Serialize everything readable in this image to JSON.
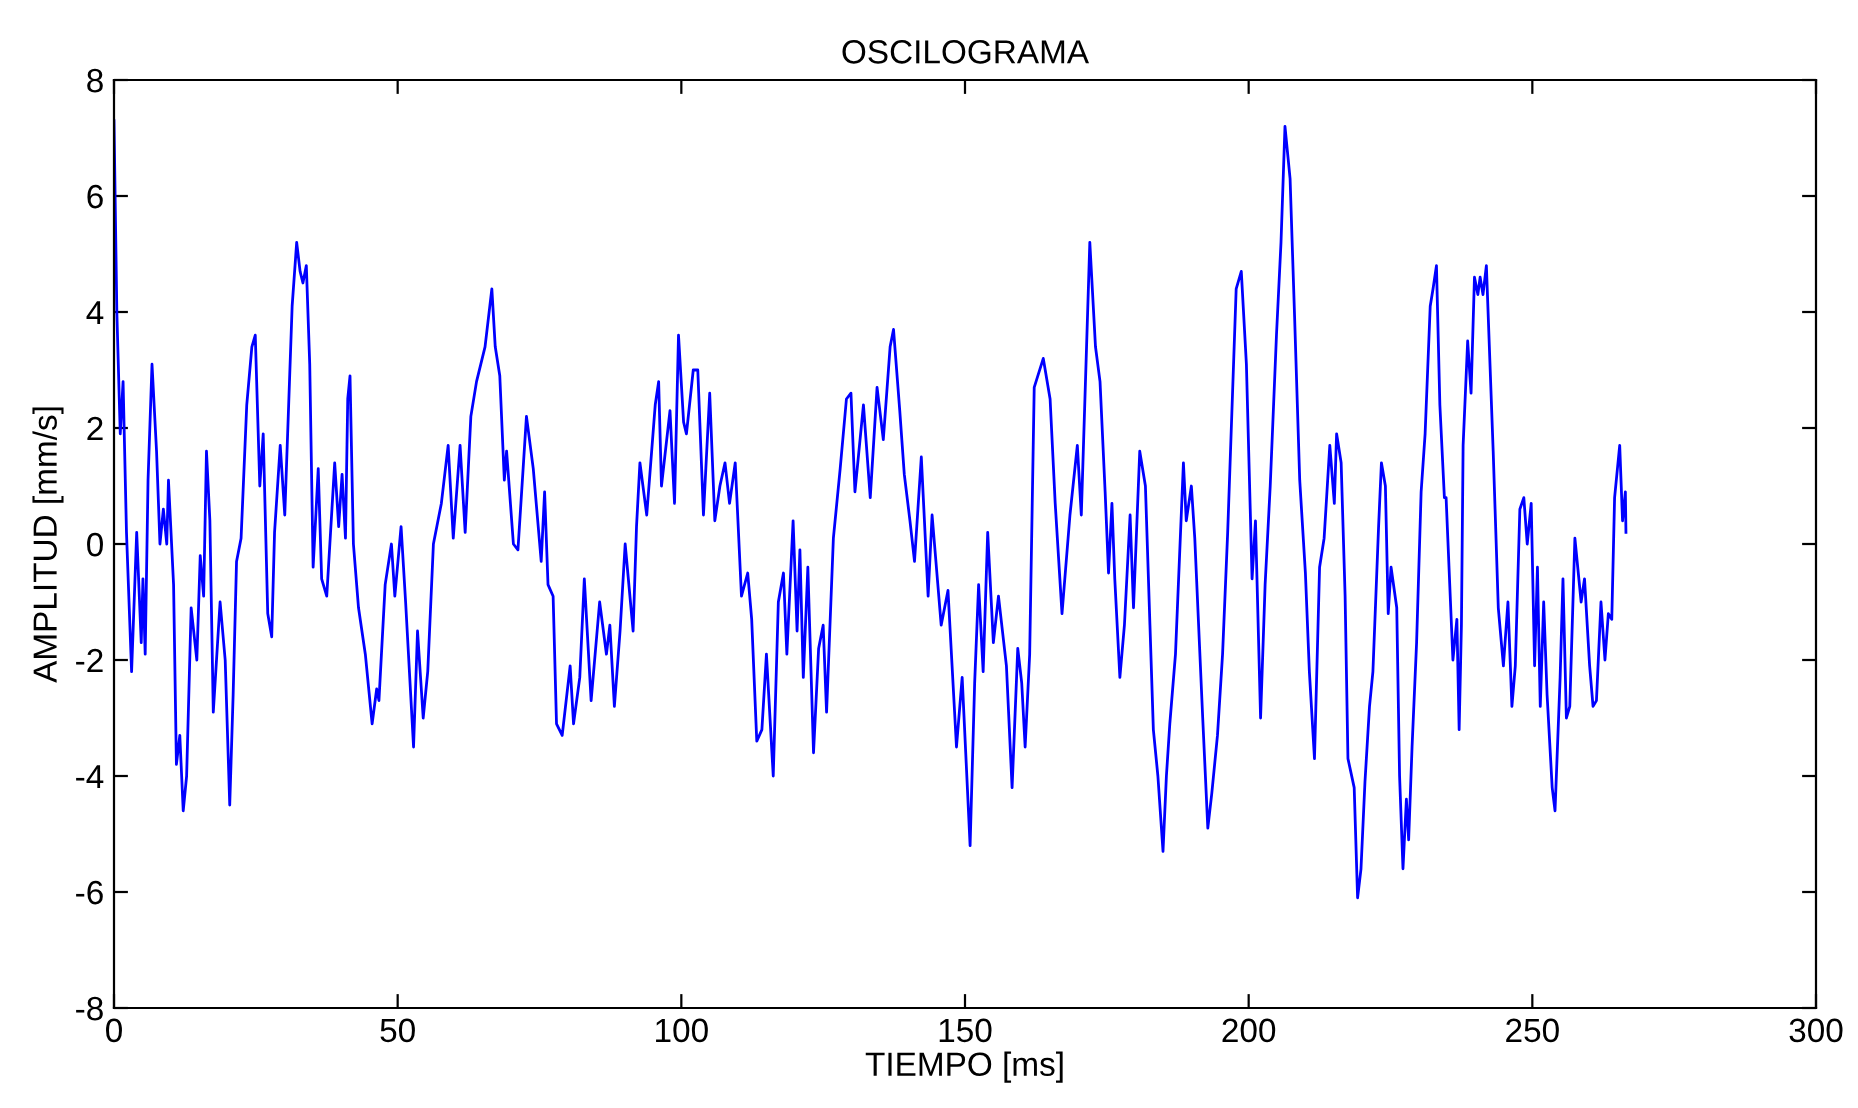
{
  "chart_data": {
    "type": "line",
    "title": "OSCILOGRAMA",
    "xlabel": "TIEMPO [ms]",
    "ylabel": "AMPLITUD [mm/s]",
    "xlim": [
      0,
      300
    ],
    "xticks": [
      0,
      50,
      100,
      150,
      200,
      250,
      300
    ],
    "ylim": [
      -8,
      8
    ],
    "yticks": [
      -8,
      -6,
      -4,
      -2,
      0,
      2,
      4,
      6,
      8
    ],
    "grid": false,
    "legend": false,
    "marker": "none",
    "line_style": "solid",
    "x": [
      0,
      0.5,
      1.1,
      1.6,
      2.2,
      3.1,
      4.0,
      4.8,
      5.1,
      5.5,
      6.0,
      6.7,
      7.5,
      8.1,
      8.7,
      9.3,
      9.6,
      10.5,
      11.0,
      11.6,
      12.2,
      12.8,
      13.6,
      14.6,
      15.2,
      15.8,
      16.3,
      16.9,
      17.5,
      18.7,
      19.6,
      20.4,
      21.0,
      21.6,
      22.4,
      23.4,
      24.3,
      24.9,
      25.7,
      26.3,
      27.1,
      27.8,
      28.3,
      29.3,
      30.1,
      31.4,
      32.2,
      32.8,
      33.3,
      33.9,
      34.5,
      35.1,
      36.0,
      36.6,
      37.5,
      38.9,
      39.6,
      40.2,
      40.8,
      41.2,
      41.6,
      42.2,
      43.1,
      44.3,
      45.5,
      46.3,
      46.7,
      47.8,
      48.9,
      49.5,
      50.6,
      51.4,
      52.8,
      53.5,
      54.5,
      55.3,
      56.3,
      57.7,
      58.9,
      59.8,
      61.0,
      61.9,
      62.9,
      63.9,
      65.4,
      66.6,
      67.2,
      68.0,
      68.8,
      69.2,
      70.4,
      71.2,
      72.7,
      73.9,
      75.3,
      75.9,
      76.5,
      77.4,
      78.0,
      79.0,
      80.4,
      81.0,
      82.1,
      82.9,
      84.1,
      85.6,
      86.8,
      87.4,
      88.2,
      89.2,
      90.1,
      91.5,
      92.1,
      92.7,
      93.9,
      95.4,
      96.0,
      96.5,
      98.0,
      98.8,
      99.5,
      100.4,
      100.9,
      102.1,
      102.9,
      103.9,
      105.0,
      105.9,
      106.8,
      107.7,
      108.5,
      109.5,
      110.6,
      111.7,
      112.4,
      113.3,
      114.2,
      115.0,
      116.2,
      117.1,
      118.0,
      118.6,
      119.7,
      120.4,
      120.9,
      121.5,
      122.3,
      123.3,
      124.2,
      125.0,
      125.6,
      126.8,
      128.0,
      129.1,
      129.9,
      130.6,
      132.1,
      133.3,
      134.5,
      135.6,
      136.8,
      137.4,
      138.5,
      139.3,
      140.3,
      141.1,
      142.3,
      143.5,
      144.2,
      145.8,
      147.0,
      148.5,
      149.5,
      150.9,
      151.7,
      152.4,
      153.2,
      154.0,
      155.0,
      155.9,
      157.3,
      158.3,
      159.3,
      160.0,
      160.6,
      161.4,
      162.2,
      163.8,
      165.0,
      165.9,
      167.1,
      168.5,
      169.8,
      170.5,
      172.0,
      173.0,
      173.8,
      174.7,
      175.3,
      175.9,
      176.4,
      177.3,
      178.1,
      179.1,
      179.7,
      180.8,
      181.8,
      182.6,
      183.2,
      184.0,
      184.9,
      185.5,
      186.1,
      187.1,
      188.5,
      189.0,
      189.9,
      190.5,
      191.9,
      192.8,
      193.5,
      194.5,
      195.4,
      196.3,
      197.8,
      198.7,
      199.6,
      200.6,
      201.2,
      202.1,
      202.9,
      203.8,
      204.9,
      205.7,
      206.4,
      207.3,
      208.1,
      209.0,
      210.0,
      210.7,
      211.6,
      212.5,
      213.3,
      214.3,
      215.1,
      215.5,
      216.3,
      217.0,
      217.5,
      218.6,
      219.2,
      219.8,
      220.5,
      221.3,
      221.9,
      222.9,
      223.4,
      224.1,
      224.6,
      225.1,
      226.1,
      226.6,
      227.2,
      227.8,
      228.2,
      228.8,
      229.6,
      230.4,
      231.1,
      232.0,
      232.5,
      233.1,
      233.7,
      234.5,
      234.8,
      236.0,
      236.7,
      237.1,
      237.5,
      237.8,
      238.6,
      239.2,
      239.8,
      240.4,
      240.8,
      241.3,
      241.9,
      243.1,
      244.0,
      244.9,
      245.7,
      246.4,
      247.0,
      247.8,
      248.5,
      249.1,
      249.8,
      250.4,
      250.9,
      251.4,
      252.0,
      252.6,
      253.5,
      254.0,
      254.9,
      255.4,
      256.0,
      256.6,
      257.5,
      258.6,
      259.2,
      260.1,
      260.7,
      261.3,
      262.1,
      262.8,
      263.4,
      264.0,
      264.5,
      265.4,
      265.9,
      266.4,
      266.5
    ],
    "series": [
      {
        "color": "#0000ff",
        "values": [
          7.3,
          4.0,
          1.9,
          2.8,
          0.2,
          -2.2,
          0.2,
          -1.7,
          -0.6,
          -1.9,
          1.1,
          3.1,
          1.6,
          0,
          0.6,
          0,
          1.1,
          -0.7,
          -3.8,
          -3.3,
          -4.6,
          -4.0,
          -1.1,
          -2.0,
          -0.2,
          -0.9,
          1.6,
          0.4,
          -2.9,
          -1.0,
          -2.0,
          -4.5,
          -2.6,
          -0.3,
          0.1,
          2.4,
          3.4,
          3.6,
          1.0,
          1.9,
          -1.2,
          -1.6,
          0.2,
          1.7,
          0.5,
          4.1,
          5.2,
          4.7,
          4.5,
          4.8,
          3.1,
          -0.4,
          1.3,
          -0.6,
          -0.9,
          1.4,
          0.3,
          1.2,
          0.1,
          2.5,
          2.9,
          0,
          -1.1,
          -1.9,
          -3.1,
          -2.5,
          -2.7,
          -0.7,
          0,
          -0.9,
          0.3,
          -1.0,
          -3.5,
          -1.5,
          -3.0,
          -2.2,
          0,
          0.7,
          1.7,
          0.1,
          1.7,
          0.2,
          2.2,
          2.8,
          3.4,
          4.4,
          3.4,
          2.9,
          1.1,
          1.6,
          0,
          -0.1,
          2.2,
          1.3,
          -0.3,
          0.9,
          -0.7,
          -0.9,
          -3.1,
          -3.3,
          -2.1,
          -3.1,
          -2.3,
          -0.6,
          -2.7,
          -1.0,
          -1.9,
          -1.4,
          -2.8,
          -1.5,
          0,
          -1.5,
          0.3,
          1.4,
          0.5,
          2.4,
          2.8,
          1.0,
          2.3,
          0.7,
          3.6,
          2.1,
          1.9,
          3.0,
          3.0,
          0.5,
          2.6,
          0.4,
          1.0,
          1.4,
          0.7,
          1.4,
          -0.9,
          -0.5,
          -1.3,
          -3.4,
          -3.2,
          -1.9,
          -4.0,
          -1.0,
          -0.5,
          -1.9,
          0.4,
          -1.5,
          -0.1,
          -2.3,
          -0.4,
          -3.6,
          -1.8,
          -1.4,
          -2.9,
          0.1,
          1.3,
          2.5,
          2.6,
          0.9,
          2.4,
          0.8,
          2.7,
          1.8,
          3.4,
          3.7,
          2.3,
          1.2,
          0.4,
          -0.3,
          1.5,
          -0.9,
          0.5,
          -1.4,
          -0.8,
          -3.5,
          -2.3,
          -5.2,
          -2.4,
          -0.7,
          -2.2,
          0.2,
          -1.7,
          -0.9,
          -2.1,
          -4.2,
          -1.8,
          -2.4,
          -3.5,
          -1.9,
          2.7,
          3.2,
          2.5,
          0.7,
          -1.2,
          0.5,
          1.7,
          0.5,
          5.2,
          3.4,
          2.8,
          0.9,
          -0.5,
          0.7,
          -0.6,
          -2.3,
          -1.4,
          0.5,
          -1.1,
          1.6,
          1.0,
          -1.4,
          -3.2,
          -4.0,
          -5.3,
          -4.0,
          -3.1,
          -1.9,
          1.4,
          0.4,
          1.0,
          0.1,
          -3.0,
          -4.9,
          -4.3,
          -3.3,
          -1.9,
          0.2,
          4.4,
          4.7,
          3.1,
          -0.6,
          0.4,
          -3.0,
          -0.7,
          1.0,
          3.6,
          5.2,
          7.2,
          6.3,
          3.9,
          1.1,
          -0.5,
          -2.2,
          -3.7,
          -0.4,
          0.1,
          1.7,
          0.7,
          1.9,
          1.4,
          -0.9,
          -3.7,
          -4.2,
          -6.1,
          -5.6,
          -4.1,
          -2.8,
          -2.2,
          0.3,
          1.4,
          1.0,
          -1.2,
          -0.4,
          -1.1,
          -4.0,
          -5.6,
          -4.4,
          -5.1,
          -3.5,
          -1.7,
          0.9,
          1.9,
          4.1,
          4.4,
          4.8,
          2.4,
          0.8,
          0.8,
          -2.0,
          -1.3,
          -3.2,
          -1.4,
          1.7,
          3.5,
          2.6,
          4.6,
          4.3,
          4.6,
          4.3,
          4.8,
          1.6,
          -1.1,
          -2.1,
          -1.0,
          -2.8,
          -2.1,
          0.6,
          0.8,
          0,
          0.7,
          -2.1,
          -0.4,
          -2.8,
          -1.0,
          -2.6,
          -4.2,
          -4.6,
          -2.3,
          -0.6,
          -3.0,
          -2.8,
          0.1,
          -1.0,
          -0.6,
          -2.1,
          -2.8,
          -2.7,
          -1.0,
          -2.0,
          -1.2,
          -1.3,
          0.8,
          1.7,
          0.4,
          0.9,
          0.2
        ]
      }
    ]
  }
}
